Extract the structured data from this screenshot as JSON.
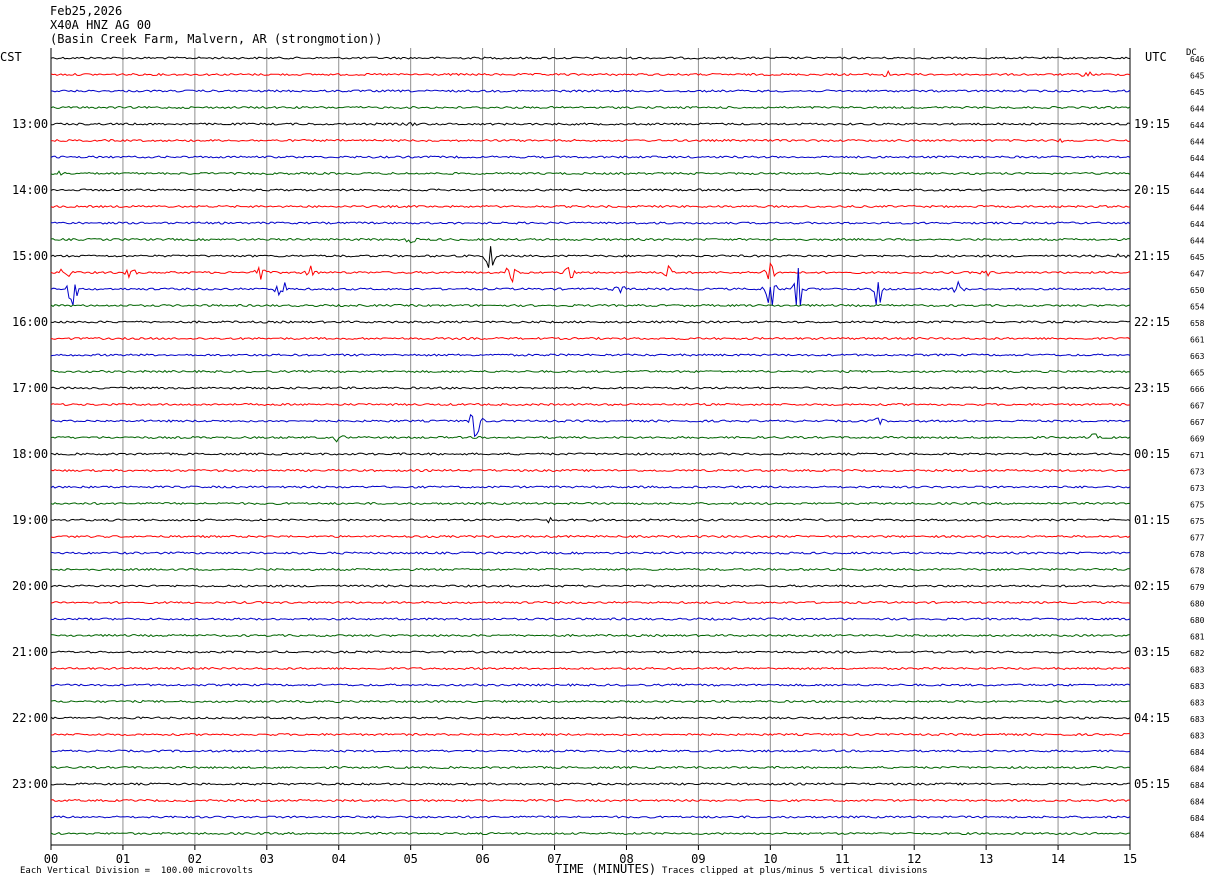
{
  "header": {
    "date": "Feb25,2026",
    "station": "X40A HNZ AG 00",
    "location": "(Basin Creek Farm, Malvern, AR (strongmotion))"
  },
  "left_axis_title": "CST",
  "right_axis_title": "UTC",
  "dc_title": "DC",
  "xlabel": "TIME (MINUTES)",
  "footer": {
    "scale_note": "Each Vertical Division =  100.00 microvolts",
    "clip_note": "Traces clipped at plus/minus 5 vertical divisions"
  },
  "chart_data": {
    "type": "line",
    "xlim": [
      0,
      15
    ],
    "x_ticks": [
      "00",
      "01",
      "02",
      "03",
      "04",
      "05",
      "06",
      "07",
      "08",
      "09",
      "10",
      "11",
      "12",
      "13",
      "14",
      "15"
    ],
    "row_count": 48,
    "trace_colors": [
      "#000000",
      "#ff0000",
      "#0000c8",
      "#006400"
    ],
    "cst_labels": [
      {
        "row": 4,
        "text": "13:00"
      },
      {
        "row": 8,
        "text": "14:00"
      },
      {
        "row": 12,
        "text": "15:00"
      },
      {
        "row": 16,
        "text": "16:00"
      },
      {
        "row": 20,
        "text": "17:00"
      },
      {
        "row": 24,
        "text": "18:00"
      },
      {
        "row": 28,
        "text": "19:00"
      },
      {
        "row": 32,
        "text": "20:00"
      },
      {
        "row": 36,
        "text": "21:00"
      },
      {
        "row": 40,
        "text": "22:00"
      },
      {
        "row": 44,
        "text": "23:00"
      }
    ],
    "utc_labels": [
      {
        "row": 4,
        "text": "19:15"
      },
      {
        "row": 8,
        "text": "20:15"
      },
      {
        "row": 12,
        "text": "21:15"
      },
      {
        "row": 16,
        "text": "22:15"
      },
      {
        "row": 20,
        "text": "23:15"
      },
      {
        "row": 24,
        "text": "00:15"
      },
      {
        "row": 28,
        "text": "01:15"
      },
      {
        "row": 32,
        "text": "02:15"
      },
      {
        "row": 36,
        "text": "03:15"
      },
      {
        "row": 40,
        "text": "04:15"
      },
      {
        "row": 44,
        "text": "05:15"
      }
    ],
    "dc_values": [
      "646",
      "645",
      "645",
      "644",
      "644",
      "644",
      "644",
      "644",
      "644",
      "644",
      "644",
      "644",
      "645",
      "647",
      "650",
      "654",
      "658",
      "661",
      "663",
      "665",
      "666",
      "667",
      "667",
      "669",
      "671",
      "673",
      "673",
      "675",
      "675",
      "677",
      "678",
      "678",
      "679",
      "680",
      "680",
      "681",
      "682",
      "683",
      "683",
      "683",
      "683",
      "683",
      "684",
      "684",
      "684",
      "684",
      "684",
      "684"
    ],
    "events": [
      {
        "row": 1,
        "x": 11.6,
        "amp": 4
      },
      {
        "row": 1,
        "x": 14.4,
        "amp": 3
      },
      {
        "row": 4,
        "x": 5.0,
        "amp": 2
      },
      {
        "row": 5,
        "x": 14.0,
        "amp": 2
      },
      {
        "row": 7,
        "x": 0.1,
        "amp": 2
      },
      {
        "row": 11,
        "x": 5.0,
        "amp": 3
      },
      {
        "row": 12,
        "x": 6.1,
        "amp": 14
      },
      {
        "row": 12,
        "x": 14.9,
        "amp": 3
      },
      {
        "row": 13,
        "x": 0.2,
        "amp": 7
      },
      {
        "row": 13,
        "x": 1.1,
        "amp": 5
      },
      {
        "row": 13,
        "x": 2.9,
        "amp": 8
      },
      {
        "row": 13,
        "x": 3.6,
        "amp": 7
      },
      {
        "row": 13,
        "x": 6.4,
        "amp": 10
      },
      {
        "row": 13,
        "x": 7.2,
        "amp": 8
      },
      {
        "row": 13,
        "x": 8.6,
        "amp": 7
      },
      {
        "row": 13,
        "x": 10.0,
        "amp": 14
      },
      {
        "row": 13,
        "x": 13.0,
        "amp": 3
      },
      {
        "row": 14,
        "x": 0.3,
        "amp": 16
      },
      {
        "row": 14,
        "x": 3.2,
        "amp": 12
      },
      {
        "row": 14,
        "x": 7.9,
        "amp": 5
      },
      {
        "row": 14,
        "x": 10.0,
        "amp": 25
      },
      {
        "row": 14,
        "x": 10.4,
        "amp": 22
      },
      {
        "row": 14,
        "x": 11.5,
        "amp": 20
      },
      {
        "row": 14,
        "x": 12.6,
        "amp": 8
      },
      {
        "row": 22,
        "x": 5.9,
        "amp": 20
      },
      {
        "row": 22,
        "x": 11.5,
        "amp": 3
      },
      {
        "row": 23,
        "x": 4.0,
        "amp": 4
      },
      {
        "row": 23,
        "x": 14.5,
        "amp": 3
      },
      {
        "row": 28,
        "x": 6.9,
        "amp": 3
      }
    ]
  }
}
